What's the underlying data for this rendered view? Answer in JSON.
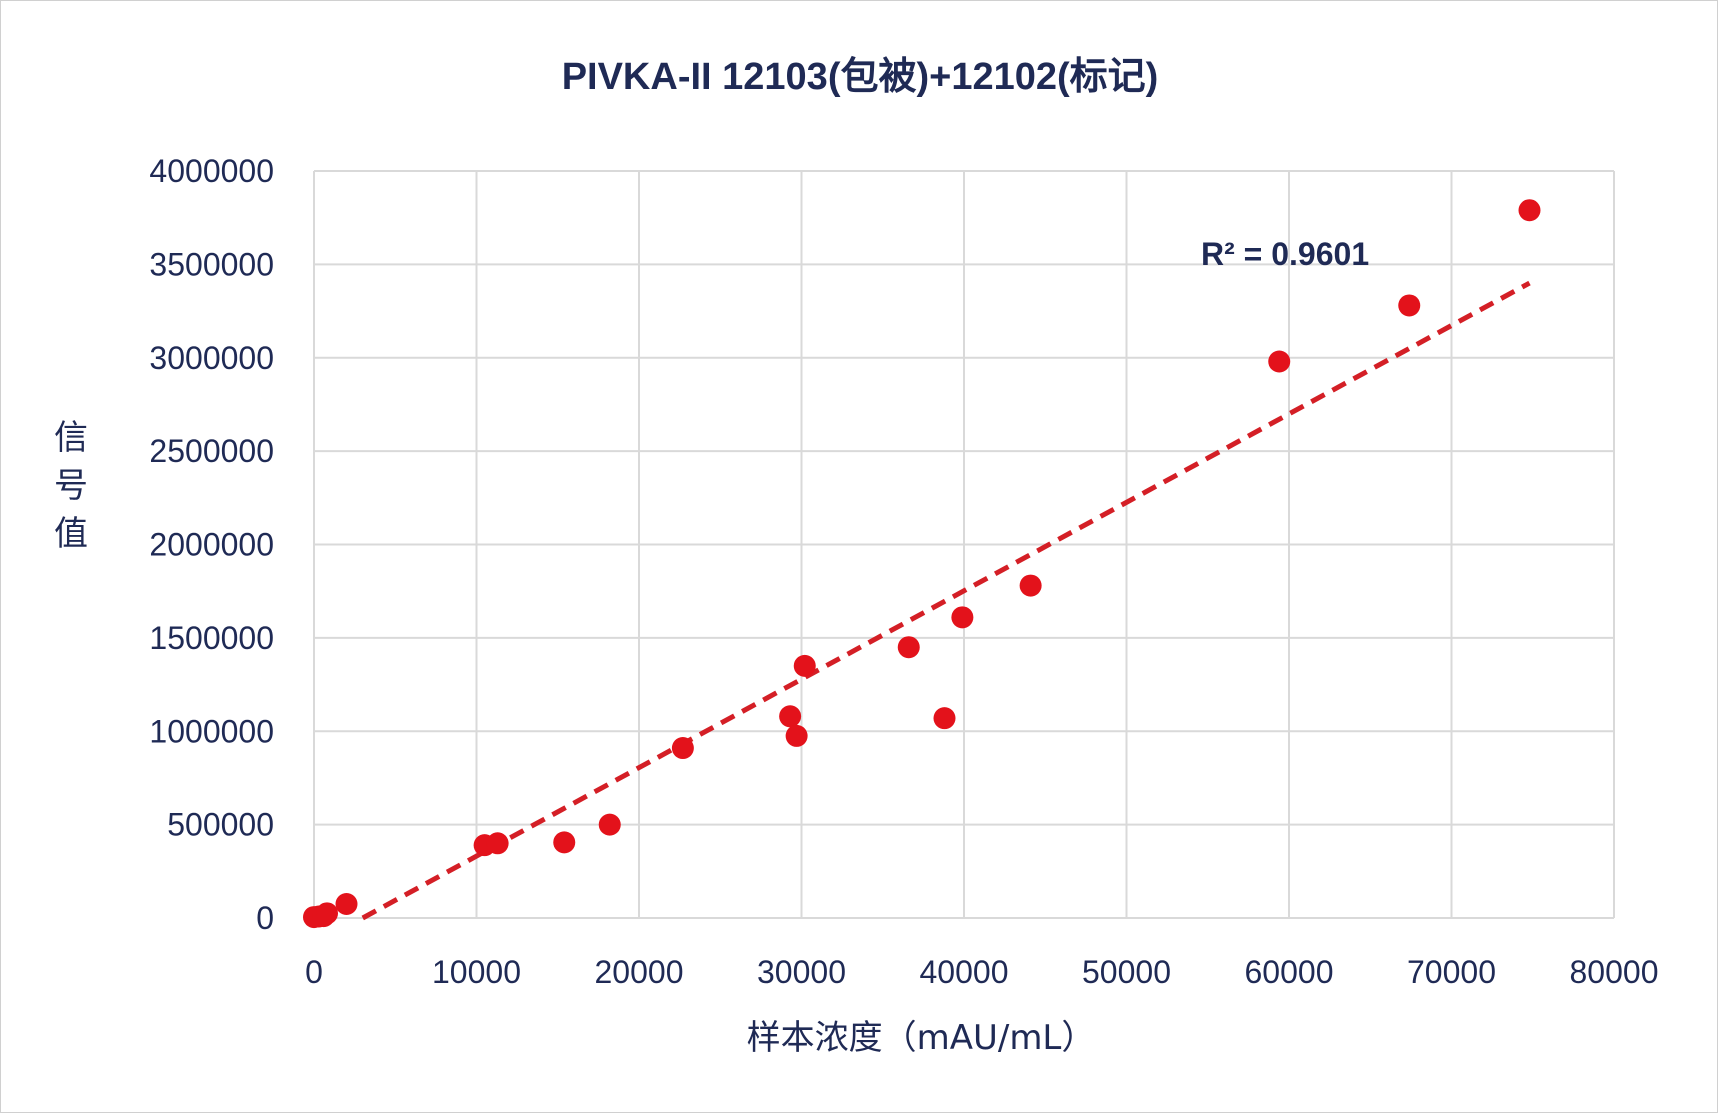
{
  "chart_data": {
    "type": "scatter",
    "title": "PIVKA-II 12103(包被)+12102(标记)",
    "xlabel": "样本浓度（mAU/mL）",
    "ylabel": "信号值",
    "xlim": [
      0,
      80000
    ],
    "ylim": [
      0,
      4000000
    ],
    "x_ticks": [
      0,
      10000,
      20000,
      30000,
      40000,
      50000,
      60000,
      70000,
      80000
    ],
    "y_ticks": [
      0,
      500000,
      1000000,
      1500000,
      2000000,
      2500000,
      3000000,
      3500000,
      4000000
    ],
    "x_tick_labels": [
      "0",
      "10000",
      "20000",
      "30000",
      "40000",
      "50000",
      "60000",
      "70000",
      "80000"
    ],
    "y_tick_labels": [
      "0",
      "500000",
      "1000000",
      "1500000",
      "2000000",
      "2500000",
      "3000000",
      "3500000",
      "4000000"
    ],
    "grid": true,
    "series": [
      {
        "color": "#e3121b",
        "points": [
          {
            "x": 0,
            "y": 5000
          },
          {
            "x": 300,
            "y": 8000
          },
          {
            "x": 600,
            "y": 10000
          },
          {
            "x": 800,
            "y": 25000
          },
          {
            "x": 2000,
            "y": 75000
          },
          {
            "x": 10500,
            "y": 390000
          },
          {
            "x": 11300,
            "y": 400000
          },
          {
            "x": 15400,
            "y": 405000
          },
          {
            "x": 18200,
            "y": 500000
          },
          {
            "x": 22700,
            "y": 910000
          },
          {
            "x": 29300,
            "y": 1080000
          },
          {
            "x": 29700,
            "y": 975000
          },
          {
            "x": 30200,
            "y": 1350000
          },
          {
            "x": 36600,
            "y": 1450000
          },
          {
            "x": 38800,
            "y": 1070000
          },
          {
            "x": 39900,
            "y": 1610000
          },
          {
            "x": 44100,
            "y": 1780000
          },
          {
            "x": 59400,
            "y": 2980000
          },
          {
            "x": 67400,
            "y": 3280000
          },
          {
            "x": 74800,
            "y": 3790000
          }
        ]
      }
    ],
    "trendline": {
      "type": "linear",
      "color": "#d41f26",
      "style": "dashed",
      "x_start": 3000,
      "y_start": 0,
      "x_end": 74800,
      "y_end": 3400000,
      "r_squared_label": "R² = 0.9601"
    }
  }
}
